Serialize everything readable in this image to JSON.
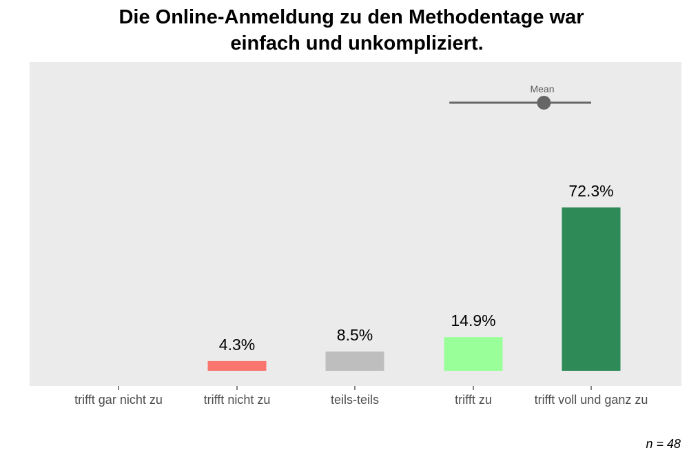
{
  "chart_data": {
    "type": "bar",
    "title_lines": [
      "Die Online-Anmeldung zu den Methodentage war",
      "einfach und unkompliziert."
    ],
    "categories": [
      "trifft gar nicht zu",
      "trifft nicht zu",
      "teils-teils",
      "trifft zu",
      "trifft voll und ganz zu"
    ],
    "values": [
      0,
      4.3,
      8.5,
      14.9,
      72.3
    ],
    "value_labels": [
      "",
      "4.3%",
      "8.5%",
      "14.9%",
      "72.3%"
    ],
    "colors": [
      "#f8766d",
      "#f8766d",
      "#bebebe",
      "#99ff99",
      "#2e8b57"
    ],
    "ylim": [
      0,
      100
    ],
    "grid": false,
    "panel_background": "#ebebeb",
    "mean": {
      "label": "Mean",
      "value": 4.6,
      "lower": 3.8,
      "upper": 5.0,
      "color": "#666666"
    },
    "footnote": "n = 48"
  }
}
